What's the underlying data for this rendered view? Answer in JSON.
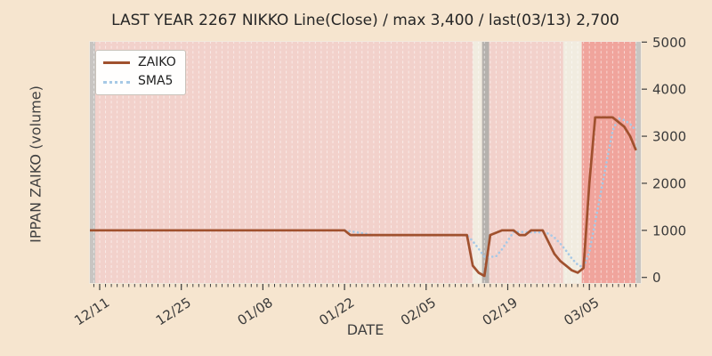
{
  "title": "LAST YEAR 2267 NIKKO Line(Close) / max 3,400 / last(03/13) 2,700",
  "xlabel": "DATE",
  "ylabel": "IPPAN ZAIKO (volume)",
  "legend": {
    "zaiko_label": "ZAIKO",
    "sma5_label": "SMA5"
  },
  "colors": {
    "page_bg": "#f6e5cf",
    "plot_bg": "#f2d1cb",
    "grid_line": "#ffffff",
    "band_cream": "#f1ece0",
    "band_gray": "#b5b1ad",
    "band_gray_edge": "#c8c5c2",
    "band_red": "#f0a49c",
    "zaiko_line": "#a0512e",
    "sma5_line": "#a7c9e6",
    "tick_text": "#3a3a3a",
    "tick_mark": "#3f3f3f",
    "plot_border": "#f2e9dd"
  },
  "chart_data": {
    "type": "line",
    "title": "LAST YEAR 2267 NIKKO Line(Close) / max 3,400 / last(03/13) 2,700",
    "xlabel": "DATE",
    "ylabel": "IPPAN ZAIKO (volume)",
    "x_start_date": "12/09",
    "x_end_date": "03/13",
    "start_day_offset": -2,
    "max_value": 3400,
    "max_label": "3,400",
    "last_value": 2700,
    "last_label": "2,700",
    "last_date": "03/13",
    "ylim": [
      -140,
      5040
    ],
    "xlim_days": [
      -1.85,
      93.0
    ],
    "grid": "vertical-daily-white-dashed",
    "legend_position": "upper-left",
    "yticks": [
      0,
      1000,
      2000,
      3000,
      4000,
      5000
    ],
    "xticks": [
      {
        "day": 0,
        "label": "12/11"
      },
      {
        "day": 14,
        "label": "12/25"
      },
      {
        "day": 28,
        "label": "01/08"
      },
      {
        "day": 42,
        "label": "01/22"
      },
      {
        "day": 56,
        "label": "02/05"
      },
      {
        "day": 70,
        "label": "02/19"
      },
      {
        "day": 84,
        "label": "03/05"
      }
    ],
    "bands": [
      {
        "from_day": -1.85,
        "to_day": -0.76,
        "color_key": "band_gray_edge"
      },
      {
        "from_day": 64.0,
        "to_day": 65.6,
        "color_key": "band_cream"
      },
      {
        "from_day": 65.6,
        "to_day": 66.8,
        "color_key": "band_gray"
      },
      {
        "from_day": 79.5,
        "to_day": 82.7,
        "color_key": "band_cream"
      },
      {
        "from_day": 82.7,
        "to_day": 91.9,
        "color_key": "band_red"
      },
      {
        "from_day": 91.9,
        "to_day": 93.0,
        "color_key": "band_gray_edge"
      }
    ],
    "series": [
      {
        "name": "ZAIKO",
        "style": "solid",
        "color_key": "zaiko_line",
        "values": [
          1000,
          1000,
          1000,
          1000,
          1000,
          1000,
          1000,
          1000,
          1000,
          1000,
          1000,
          1000,
          1000,
          1000,
          1000,
          1000,
          1000,
          1000,
          1000,
          1000,
          1000,
          1000,
          1000,
          1000,
          1000,
          1000,
          1000,
          1000,
          1000,
          1000,
          1000,
          1000,
          1000,
          1000,
          1000,
          1000,
          1000,
          1000,
          1000,
          1000,
          1000,
          1000,
          1000,
          1000,
          1000,
          900,
          900,
          900,
          900,
          900,
          900,
          900,
          900,
          900,
          900,
          900,
          900,
          900,
          900,
          900,
          900,
          900,
          900,
          900,
          900,
          900,
          250,
          100,
          30,
          900,
          950,
          1000,
          1000,
          1000,
          900,
          900,
          1000,
          1000,
          1000,
          750,
          500,
          350,
          250,
          150,
          100,
          200,
          2000,
          3400,
          3400,
          3400,
          3400,
          3300,
          3200,
          3000,
          2700
        ]
      },
      {
        "name": "SMA5",
        "style": "dotted",
        "color_key": "sma5_line",
        "values": [
          null,
          null,
          null,
          null,
          null,
          null,
          1000,
          1000,
          1000,
          1000,
          1000,
          1000,
          1000,
          1000,
          1000,
          1000,
          1000,
          1000,
          1000,
          1000,
          1000,
          1000,
          1000,
          1000,
          1000,
          1000,
          1000,
          1000,
          1000,
          1000,
          1000,
          1000,
          1000,
          1000,
          1000,
          1000,
          1000,
          1000,
          1000,
          1000,
          1000,
          1000,
          1000,
          1000,
          1000,
          980,
          960,
          940,
          920,
          900,
          900,
          900,
          900,
          900,
          900,
          900,
          900,
          900,
          900,
          900,
          900,
          900,
          900,
          900,
          900,
          900,
          770,
          610,
          436,
          436,
          446,
          596,
          776,
          970,
          970,
          960,
          960,
          960,
          960,
          930,
          850,
          720,
          570,
          400,
          270,
          210,
          540,
          1170,
          1820,
          2480,
          3120,
          3380,
          3340,
          3260,
          3120
        ]
      }
    ]
  }
}
